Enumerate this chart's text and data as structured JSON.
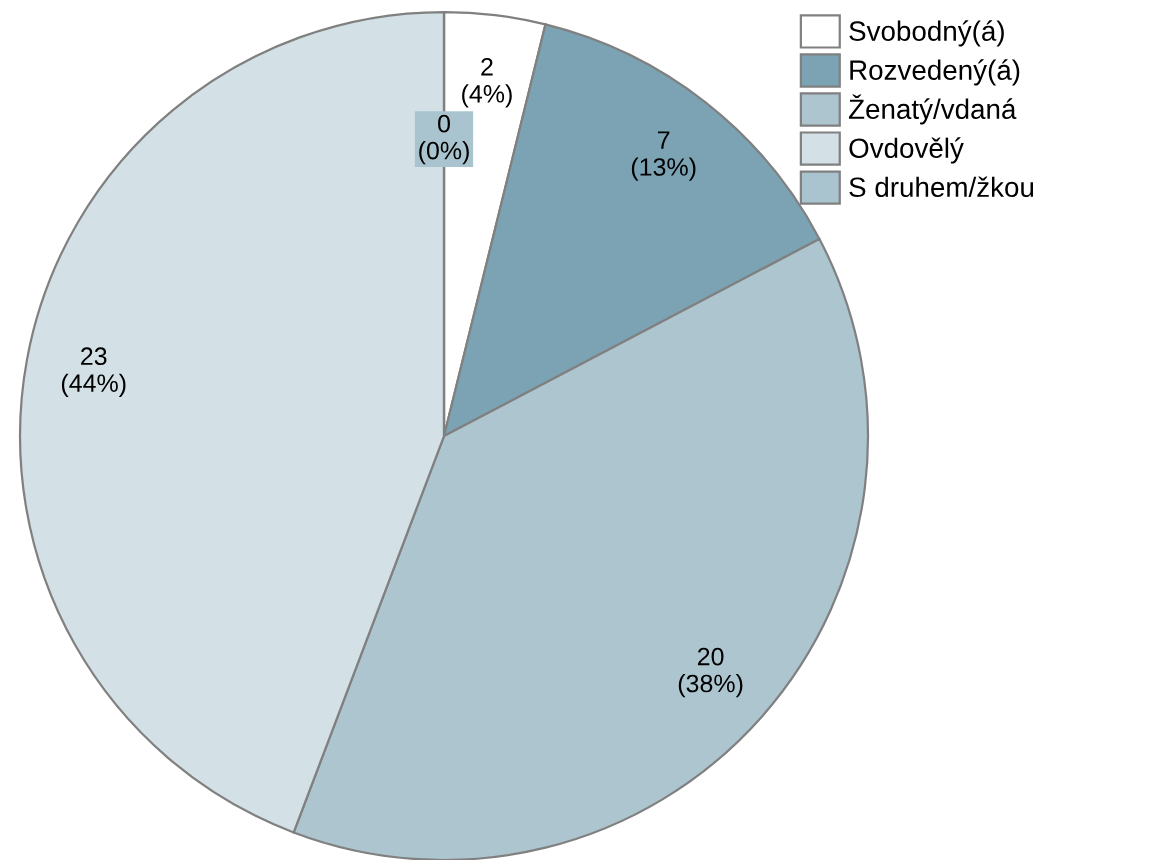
{
  "chart_data": {
    "type": "pie",
    "categories": [
      "Svobodný(á)",
      "Rozvedený(á)",
      "Ženatý/vdaná",
      "Ovdovělý",
      "S druhem/žkou"
    ],
    "values": [
      2,
      7,
      20,
      23,
      0
    ],
    "colors": [
      "#ffffff",
      "#7ba3b4",
      "#adc5cf",
      "#d3e0e6",
      "#a9c4ce"
    ],
    "value_labels": [
      "2\n(4%)",
      "7\n(13%)",
      "20\n(38%)",
      "23\n(44%)",
      "0\n(0%)"
    ],
    "legend": "top right"
  }
}
